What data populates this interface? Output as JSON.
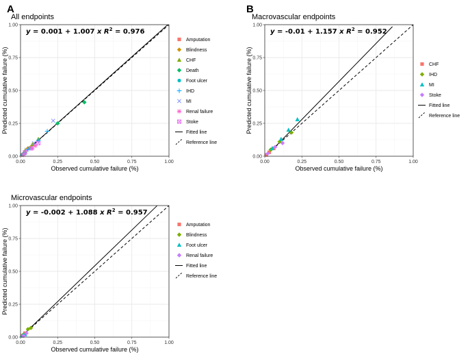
{
  "colors": {
    "Amputation": "#F8766D",
    "Blindness": "#CD9600",
    "CHF": "#7CAE00",
    "Death": "#00BE67",
    "Foot ulcer": "#00BFC4",
    "IHD": "#00A9FF",
    "MI": "#8494FF",
    "Renal failure": "#FF61CC",
    "Stoke": "#E76BF3",
    "CHF_b": "#F8766D",
    "IHD_b": "#7CAE00",
    "MI_b": "#00BFC4",
    "Stoke_b": "#C77CFF",
    "Amputation_c": "#F8766D",
    "Blindness_c": "#7CAE00",
    "Foot ulcer_c": "#00BFC4",
    "Renal failure_c": "#C77CFF"
  },
  "chart_data": [
    {
      "id": "A",
      "letter": "A",
      "type": "scatter",
      "title": "All endpoints",
      "xlabel": "Observed cumulative failure (%)",
      "ylabel": "Predicted cumulative failure (%)",
      "xlim": [
        0,
        1
      ],
      "ylim": [
        0,
        1
      ],
      "xticks": [
        "0.00",
        "0.25",
        "0.50",
        "0.75",
        "1.00"
      ],
      "yticks": [
        "0.00",
        "0.25",
        "0.50",
        "0.75",
        "1.00"
      ],
      "equation": {
        "intercept": "0.001",
        "slope": "1.007",
        "r2": "0.976"
      },
      "fitted": {
        "intercept": 0.001,
        "slope": 1.007,
        "xmax": 0.99
      },
      "legend": {
        "position": "right",
        "entries": [
          {
            "label": "Amputation",
            "shape": "square",
            "color": "#F8766D"
          },
          {
            "label": "Blindness",
            "shape": "diamond",
            "color": "#CD9600"
          },
          {
            "label": "CHF",
            "shape": "triangle",
            "color": "#7CAE00"
          },
          {
            "label": "Death",
            "shape": "diamond",
            "color": "#00BE67"
          },
          {
            "label": "Foot ulcer",
            "shape": "circle",
            "color": "#00BFC4"
          },
          {
            "label": "IHD",
            "shape": "plus",
            "color": "#00A9FF"
          },
          {
            "label": "MI",
            "shape": "cross",
            "color": "#8494FF"
          },
          {
            "label": "Renal failure",
            "shape": "asterisk",
            "color": "#FF61CC"
          },
          {
            "label": "Stoke",
            "shape": "squarecross",
            "color": "#E76BF3"
          }
        ],
        "lines": [
          {
            "label": "Fitted line",
            "style": "solid"
          },
          {
            "label": "Reference line",
            "style": "dashed"
          }
        ]
      },
      "points": [
        {
          "series": "Amputation",
          "x": 0.01,
          "y": 0.01
        },
        {
          "series": "Amputation",
          "x": 0.03,
          "y": 0.03
        },
        {
          "series": "Blindness",
          "x": 0.02,
          "y": 0.02
        },
        {
          "series": "Blindness",
          "x": 0.05,
          "y": 0.06
        },
        {
          "series": "Blindness",
          "x": 0.07,
          "y": 0.07
        },
        {
          "series": "CHF",
          "x": 0.03,
          "y": 0.04
        },
        {
          "series": "CHF",
          "x": 0.08,
          "y": 0.09
        },
        {
          "series": "CHF",
          "x": 0.12,
          "y": 0.13
        },
        {
          "series": "Death",
          "x": 0.02,
          "y": 0.02
        },
        {
          "series": "Death",
          "x": 0.06,
          "y": 0.06
        },
        {
          "series": "Death",
          "x": 0.25,
          "y": 0.25
        },
        {
          "series": "Death",
          "x": 0.43,
          "y": 0.41
        },
        {
          "series": "Foot ulcer",
          "x": 0.01,
          "y": 0.01
        },
        {
          "series": "Foot ulcer",
          "x": 0.03,
          "y": 0.02
        },
        {
          "series": "IHD",
          "x": 0.05,
          "y": 0.05
        },
        {
          "series": "IHD",
          "x": 0.12,
          "y": 0.12
        },
        {
          "series": "IHD",
          "x": 0.18,
          "y": 0.19
        },
        {
          "series": "MI",
          "x": 0.04,
          "y": 0.05
        },
        {
          "series": "MI",
          "x": 0.09,
          "y": 0.1
        },
        {
          "series": "MI",
          "x": 0.22,
          "y": 0.27
        },
        {
          "series": "Renal failure",
          "x": 0.02,
          "y": 0.01
        },
        {
          "series": "Renal failure",
          "x": 0.08,
          "y": 0.06
        },
        {
          "series": "Renal failure",
          "x": 0.1,
          "y": 0.08
        },
        {
          "series": "Stoke",
          "x": 0.03,
          "y": 0.03
        },
        {
          "series": "Stoke",
          "x": 0.07,
          "y": 0.06
        },
        {
          "series": "Stoke",
          "x": 0.12,
          "y": 0.1
        }
      ]
    },
    {
      "id": "B",
      "letter": "B",
      "type": "scatter",
      "title": "Macrovascular endpoints",
      "xlabel": "Observed cumulative failure (%)",
      "ylabel": "Predicted cumulative failure (%)",
      "xlim": [
        0,
        1
      ],
      "ylim": [
        0,
        1
      ],
      "xticks": [
        "0.00",
        "0.25",
        "0.50",
        "0.75",
        "1.00"
      ],
      "yticks": [
        "0.00",
        "0.25",
        "0.50",
        "0.75",
        "1.00"
      ],
      "equation": {
        "intercept": "-0.01",
        "slope": "1.157",
        "r2": "0.952"
      },
      "fitted": {
        "intercept": -0.01,
        "slope": 1.157,
        "xmax": 0.86
      },
      "legend": {
        "position": "right",
        "entries": [
          {
            "label": "CHF",
            "shape": "square",
            "color": "#F8766D"
          },
          {
            "label": "IHD",
            "shape": "diamond",
            "color": "#7CAE00"
          },
          {
            "label": "MI",
            "shape": "triangle",
            "color": "#00BFC4"
          },
          {
            "label": "Stoke",
            "shape": "diamond",
            "color": "#C77CFF"
          }
        ],
        "lines": [
          {
            "label": "Fitted line",
            "style": "solid"
          },
          {
            "label": "Reference line",
            "style": "dashed"
          }
        ]
      },
      "points": [
        {
          "series": "CHF",
          "x": 0.01,
          "y": 0.01
        },
        {
          "series": "CHF",
          "x": 0.03,
          "y": 0.03
        },
        {
          "series": "CHF",
          "x": 0.06,
          "y": 0.06
        },
        {
          "series": "IHD",
          "x": 0.04,
          "y": 0.05
        },
        {
          "series": "IHD",
          "x": 0.1,
          "y": 0.11
        },
        {
          "series": "IHD",
          "x": 0.18,
          "y": 0.18
        },
        {
          "series": "MI",
          "x": 0.05,
          "y": 0.06
        },
        {
          "series": "MI",
          "x": 0.11,
          "y": 0.13
        },
        {
          "series": "MI",
          "x": 0.16,
          "y": 0.2
        },
        {
          "series": "MI",
          "x": 0.22,
          "y": 0.28
        },
        {
          "series": "Stoke",
          "x": 0.02,
          "y": 0.02
        },
        {
          "series": "Stoke",
          "x": 0.07,
          "y": 0.07
        },
        {
          "series": "Stoke",
          "x": 0.12,
          "y": 0.1
        }
      ]
    },
    {
      "id": "C",
      "letter": "",
      "type": "scatter",
      "title": "Microvascular endpoints",
      "xlabel": "Observed cumulative failure (%)",
      "ylabel": "Predicted cumulative failure (%)",
      "xlim": [
        0,
        1
      ],
      "ylim": [
        0,
        1
      ],
      "xticks": [
        "0.00",
        "0.25",
        "0.50",
        "0.75",
        "1.00"
      ],
      "yticks": [
        "0.00",
        "0.25",
        "0.50",
        "0.75",
        "1.00"
      ],
      "equation": {
        "intercept": "-0.002",
        "slope": "1.088",
        "r2": "0.957"
      },
      "fitted": {
        "intercept": -0.002,
        "slope": 1.088,
        "xmax": 0.92
      },
      "legend": {
        "position": "right",
        "entries": [
          {
            "label": "Amputation",
            "shape": "square",
            "color": "#F8766D"
          },
          {
            "label": "Blindness",
            "shape": "diamond",
            "color": "#7CAE00"
          },
          {
            "label": "Foot ulcer",
            "shape": "triangle",
            "color": "#00BFC4"
          },
          {
            "label": "Renal failure",
            "shape": "diamond",
            "color": "#C77CFF"
          }
        ],
        "lines": [
          {
            "label": "Fitted line",
            "style": "solid"
          },
          {
            "label": "Reference line",
            "style": "dashed"
          }
        ]
      },
      "points": [
        {
          "series": "Amputation",
          "x": 0.01,
          "y": 0.01
        },
        {
          "series": "Amputation",
          "x": 0.03,
          "y": 0.03
        },
        {
          "series": "Blindness",
          "x": 0.02,
          "y": 0.02
        },
        {
          "series": "Blindness",
          "x": 0.05,
          "y": 0.06
        },
        {
          "series": "Blindness",
          "x": 0.07,
          "y": 0.07
        },
        {
          "series": "Foot ulcer",
          "x": 0.01,
          "y": 0.01
        },
        {
          "series": "Foot ulcer",
          "x": 0.03,
          "y": 0.02
        },
        {
          "series": "Renal failure",
          "x": 0.02,
          "y": 0.01
        },
        {
          "series": "Renal failure",
          "x": 0.04,
          "y": 0.03
        }
      ]
    }
  ]
}
